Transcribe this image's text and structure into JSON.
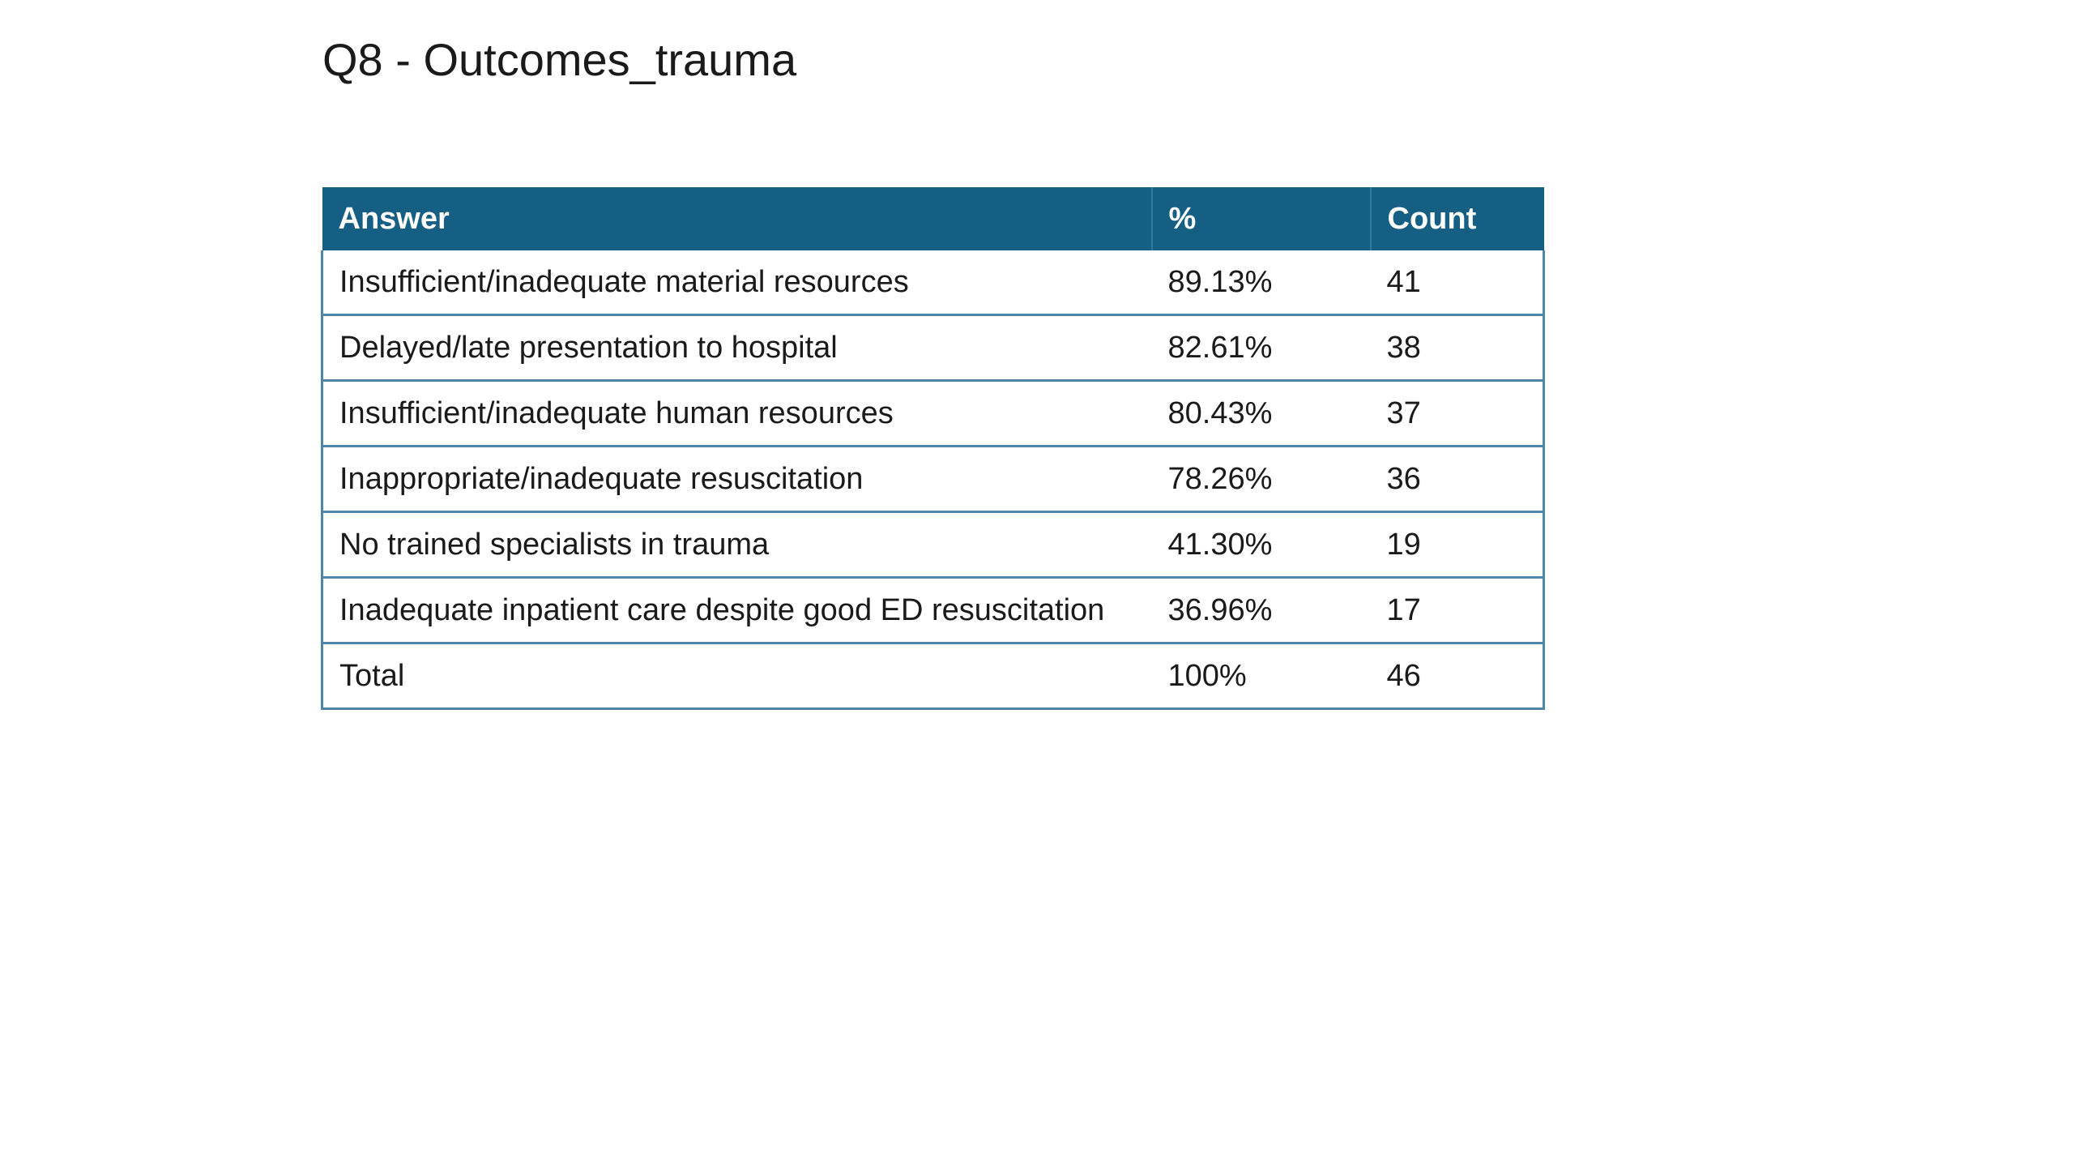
{
  "slide": {
    "title": "Q8 - Outcomes_trauma"
  },
  "table": {
    "headers": {
      "answer": "Answer",
      "percent": "%",
      "count": "Count"
    },
    "rows": [
      {
        "answer": "Insufficient/inadequate material resources",
        "percent": "89.13%",
        "count": "41"
      },
      {
        "answer": "Delayed/late presentation to hospital",
        "percent": "82.61%",
        "count": "38"
      },
      {
        "answer": "Insufficient/inadequate human resources",
        "percent": "80.43%",
        "count": "37"
      },
      {
        "answer": "Inappropriate/inadequate resuscitation",
        "percent": "78.26%",
        "count": "36"
      },
      {
        "answer": "No trained specialists in trauma",
        "percent": "41.30%",
        "count": "19"
      },
      {
        "answer": "Inadequate inpatient care despite good ED resuscitation",
        "percent": "36.96%",
        "count": "17"
      },
      {
        "answer": "Total",
        "percent": "100%",
        "count": "46"
      }
    ]
  },
  "colors": {
    "header_background": "#155e84",
    "header_text": "#ffffff",
    "border": "#4d86a8"
  }
}
